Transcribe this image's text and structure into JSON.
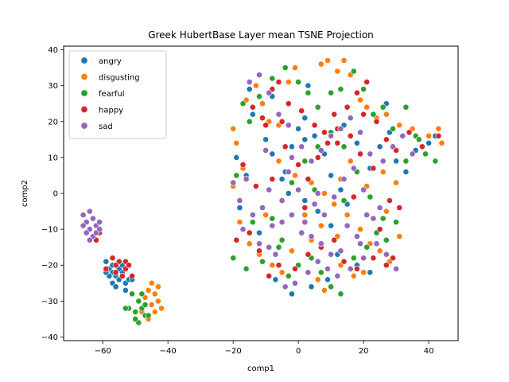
{
  "chart_data": {
    "type": "scatter",
    "title": "Greek HubertBase Layer mean TSNE Projection",
    "xlabel": "comp1",
    "ylabel": "comp2",
    "xlim": [
      -72,
      49
    ],
    "ylim": [
      -41,
      41
    ],
    "xticks": [
      -60,
      -40,
      -20,
      0,
      20,
      40
    ],
    "yticks": [
      -40,
      -30,
      -20,
      -10,
      0,
      10,
      20,
      30,
      40
    ],
    "grid": false,
    "legend_position": "top-left",
    "series": [
      {
        "name": "angry",
        "color": "#1f77b4",
        "points": [
          [
            -59,
            -19
          ],
          [
            -58,
            -21
          ],
          [
            -57,
            -22
          ],
          [
            -56,
            -23
          ],
          [
            -55,
            -24
          ],
          [
            -57,
            -25
          ],
          [
            -54,
            -22
          ],
          [
            -53,
            -25
          ],
          [
            -56,
            -26
          ],
          [
            -52,
            -24
          ],
          [
            -58,
            -23
          ],
          [
            -55,
            -21
          ],
          [
            -53,
            -27
          ],
          [
            -59,
            -22
          ],
          [
            -54,
            -20
          ],
          [
            -51,
            -24
          ],
          [
            -57,
            -20
          ],
          [
            -15,
            29
          ],
          [
            -14,
            22
          ],
          [
            -10,
            15
          ],
          [
            -8,
            11
          ],
          [
            -4,
            6
          ],
          [
            -2,
            13
          ],
          [
            0,
            18
          ],
          [
            2,
            15
          ],
          [
            5,
            16
          ],
          [
            8,
            11
          ],
          [
            10,
            5
          ],
          [
            13,
            1
          ],
          [
            15,
            -3
          ],
          [
            18,
            14
          ],
          [
            22,
            7
          ],
          [
            25,
            13
          ],
          [
            28,
            17
          ],
          [
            33,
            6
          ],
          [
            36,
            12
          ],
          [
            40,
            14
          ],
          [
            42,
            16
          ],
          [
            -3,
            0
          ],
          [
            2,
            -2
          ],
          [
            6,
            -5
          ],
          [
            10,
            -9
          ],
          [
            -5,
            4
          ],
          [
            12,
            -17
          ],
          [
            18,
            -20
          ],
          [
            22,
            -22
          ],
          [
            -7,
            -24
          ],
          [
            -2,
            -28
          ],
          [
            4,
            -26
          ],
          [
            9,
            -24
          ],
          [
            -18,
            -4
          ],
          [
            -12,
            -11
          ],
          [
            -19,
            10
          ],
          [
            -16,
            5
          ],
          [
            2,
            21
          ],
          [
            14,
            19
          ],
          [
            27,
            25
          ],
          [
            30,
            9
          ],
          [
            -8,
            27
          ],
          [
            3,
            30
          ]
        ]
      },
      {
        "name": "disgusting",
        "color": "#ff7f0e",
        "points": [
          [
            -46,
            -27
          ],
          [
            -44,
            -28
          ],
          [
            -43,
            -30
          ],
          [
            -45,
            -31
          ],
          [
            -42,
            -32
          ],
          [
            -47,
            -29
          ],
          [
            -44,
            -33
          ],
          [
            -48,
            -33
          ],
          [
            -43,
            -26
          ],
          [
            -46,
            -35
          ],
          [
            -45,
            -25
          ],
          [
            -20,
            18
          ],
          [
            -19,
            14
          ],
          [
            -16,
            26
          ],
          [
            -13,
            30
          ],
          [
            -11,
            25
          ],
          [
            -9,
            20
          ],
          [
            -6,
            19
          ],
          [
            -3,
            31
          ],
          [
            -1,
            35
          ],
          [
            7,
            36
          ],
          [
            9,
            37
          ],
          [
            12,
            34
          ],
          [
            14,
            37
          ],
          [
            16,
            33
          ],
          [
            19,
            26
          ],
          [
            21,
            24
          ],
          [
            24,
            21
          ],
          [
            27,
            22
          ],
          [
            31,
            19
          ],
          [
            35,
            18
          ],
          [
            40,
            16
          ],
          [
            43,
            18
          ],
          [
            44,
            14
          ],
          [
            -18,
            -8
          ],
          [
            -15,
            -14
          ],
          [
            -12,
            -17
          ],
          [
            -8,
            -20
          ],
          [
            -5,
            -22
          ],
          [
            -2,
            -16
          ],
          [
            1,
            -11
          ],
          [
            4,
            -13
          ],
          [
            7,
            -9
          ],
          [
            11,
            -3
          ],
          [
            15,
            -6
          ],
          [
            19,
            -10
          ],
          [
            22,
            -14
          ],
          [
            25,
            -16
          ],
          [
            28,
            -19
          ],
          [
            31,
            -12
          ],
          [
            20,
            -22
          ],
          [
            17,
            -23
          ],
          [
            13,
            -20
          ],
          [
            8,
            -27
          ],
          [
            6,
            -24
          ],
          [
            -20,
            2
          ],
          [
            -17,
            7
          ],
          [
            -6,
            9
          ],
          [
            -1,
            5
          ],
          [
            4,
            3
          ],
          [
            8,
            0
          ],
          [
            13,
            4
          ],
          [
            16,
            9
          ],
          [
            21,
            2
          ],
          [
            26,
            6
          ],
          [
            30,
            3
          ],
          [
            12,
            -12
          ],
          [
            -10,
            -6
          ],
          [
            2,
            -6
          ],
          [
            27,
            -5
          ]
        ]
      },
      {
        "name": "fearful",
        "color": "#2ca02c",
        "points": [
          [
            -51,
            -28
          ],
          [
            -49,
            -30
          ],
          [
            -48,
            -32
          ],
          [
            -50,
            -33
          ],
          [
            -47,
            -34
          ],
          [
            -49,
            -36
          ],
          [
            -46,
            -34
          ],
          [
            -52,
            -32
          ],
          [
            -48,
            -28
          ],
          [
            -50,
            -35
          ],
          [
            -47,
            -31
          ],
          [
            -53,
            -32
          ],
          [
            -17,
            25
          ],
          [
            -15,
            20
          ],
          [
            -12,
            27
          ],
          [
            -8,
            32
          ],
          [
            -4,
            35
          ],
          [
            0,
            31
          ],
          [
            3,
            28
          ],
          [
            6,
            24
          ],
          [
            10,
            28
          ],
          [
            13,
            29
          ],
          [
            17,
            34
          ],
          [
            20,
            29
          ],
          [
            23,
            22
          ],
          [
            26,
            24
          ],
          [
            29,
            18
          ],
          [
            33,
            24
          ],
          [
            36,
            16
          ],
          [
            39,
            11
          ],
          [
            42,
            9
          ],
          [
            -20,
            -18
          ],
          [
            -16,
            -21
          ],
          [
            -11,
            -19
          ],
          [
            -6,
            -15
          ],
          [
            -3,
            -23
          ],
          [
            0,
            -20
          ],
          [
            4,
            -18
          ],
          [
            7,
            -22
          ],
          [
            10,
            -26
          ],
          [
            13,
            -28
          ],
          [
            17,
            -18
          ],
          [
            21,
            -15
          ],
          [
            24,
            -11
          ],
          [
            27,
            -13
          ],
          [
            30,
            -8
          ],
          [
            -5,
            -13
          ],
          [
            -8,
            -7
          ],
          [
            -2,
            3
          ],
          [
            2,
            9
          ],
          [
            6,
            13
          ],
          [
            10,
            17
          ],
          [
            14,
            13
          ],
          [
            18,
            6
          ],
          [
            22,
            -1
          ],
          [
            26,
            -7
          ],
          [
            33,
            9
          ],
          [
            37,
            15
          ],
          [
            5,
            1
          ],
          [
            -14,
            -8
          ],
          [
            -19,
            5
          ],
          [
            14,
            -2
          ]
        ]
      },
      {
        "name": "happy",
        "color": "#d62728",
        "points": [
          [
            -61,
            -11
          ],
          [
            -62,
            -13
          ],
          [
            -57,
            -18
          ],
          [
            -55,
            -19
          ],
          [
            -53,
            -21
          ],
          [
            -56,
            -20
          ],
          [
            -54,
            -23
          ],
          [
            -59,
            -21
          ],
          [
            -53,
            -19
          ],
          [
            -51,
            -23
          ],
          [
            -52,
            -20
          ],
          [
            -56,
            -22
          ],
          [
            -14,
            24
          ],
          [
            -11,
            21
          ],
          [
            -8,
            29
          ],
          [
            -6,
            31
          ],
          [
            -3,
            25
          ],
          [
            1,
            23
          ],
          [
            5,
            19
          ],
          [
            8,
            17
          ],
          [
            11,
            22
          ],
          [
            15,
            24
          ],
          [
            18,
            28
          ],
          [
            21,
            31
          ],
          [
            24,
            20
          ],
          [
            27,
            15
          ],
          [
            30,
            12
          ],
          [
            34,
            17
          ],
          [
            38,
            13
          ],
          [
            43,
            16
          ],
          [
            -10,
            19
          ],
          [
            -4,
            13
          ],
          [
            0,
            8
          ],
          [
            3,
            4
          ],
          [
            6,
            10
          ],
          [
            9,
            14
          ],
          [
            12,
            18
          ],
          [
            16,
            16
          ],
          [
            19,
            11
          ],
          [
            23,
            7
          ],
          [
            28,
            -2
          ],
          [
            31,
            -4
          ],
          [
            -19,
            -13
          ],
          [
            -15,
            -11
          ],
          [
            -12,
            -16
          ],
          [
            -9,
            -23
          ],
          [
            -6,
            -20
          ],
          [
            -1,
            -21
          ],
          [
            3,
            -17
          ],
          [
            7,
            -15
          ],
          [
            11,
            -13
          ],
          [
            14,
            -19
          ],
          [
            18,
            -21
          ],
          [
            23,
            -18
          ],
          [
            27,
            -20
          ],
          [
            29,
            -18
          ],
          [
            -17,
            8
          ],
          [
            -13,
            2
          ],
          [
            -8,
            4
          ],
          [
            2,
            -4
          ],
          [
            17,
            -1
          ],
          [
            25,
            -10
          ],
          [
            -5,
            20
          ],
          [
            20,
            22
          ],
          [
            12,
            14
          ]
        ]
      },
      {
        "name": "sad",
        "color": "#9467bd",
        "points": [
          [
            -66,
            -6
          ],
          [
            -65,
            -8
          ],
          [
            -64,
            -10
          ],
          [
            -63,
            -7
          ],
          [
            -62,
            -9
          ],
          [
            -65,
            -11
          ],
          [
            -63,
            -12
          ],
          [
            -61,
            -8
          ],
          [
            -64,
            -5
          ],
          [
            -66,
            -9
          ],
          [
            -62,
            -11
          ],
          [
            -64,
            -13
          ],
          [
            -61,
            -10
          ],
          [
            -15,
            31
          ],
          [
            -12,
            33
          ],
          [
            -9,
            28
          ],
          [
            -6,
            22
          ],
          [
            -3,
            19
          ],
          [
            -2,
            10
          ],
          [
            1,
            13
          ],
          [
            4,
            9
          ],
          [
            7,
            12
          ],
          [
            10,
            16
          ],
          [
            13,
            18
          ],
          [
            16,
            21
          ],
          [
            19,
            17
          ],
          [
            22,
            11
          ],
          [
            26,
            9
          ],
          [
            29,
            13
          ],
          [
            32,
            16
          ],
          [
            35,
            11
          ],
          [
            -20,
            3
          ],
          [
            -18,
            -2
          ],
          [
            -14,
            -6
          ],
          [
            -11,
            -4
          ],
          [
            -8,
            -9
          ],
          [
            -5,
            -8
          ],
          [
            -2,
            -6
          ],
          [
            1,
            -11
          ],
          [
            4,
            -12
          ],
          [
            7,
            -14
          ],
          [
            10,
            -17
          ],
          [
            13,
            -16
          ],
          [
            16,
            -21
          ],
          [
            20,
            -18
          ],
          [
            24,
            -14
          ],
          [
            27,
            -17
          ],
          [
            30,
            -21
          ],
          [
            -17,
            -10
          ],
          [
            -12,
            -14
          ],
          [
            -9,
            -15
          ],
          [
            -7,
            -17
          ],
          [
            -4,
            -26
          ],
          [
            -1,
            -25
          ],
          [
            3,
            -22
          ],
          [
            6,
            -19
          ],
          [
            9,
            -21
          ],
          [
            12,
            -23
          ],
          [
            15,
            -9
          ],
          [
            18,
            -12
          ],
          [
            21,
            -6
          ],
          [
            25,
            -4
          ],
          [
            -16,
            4
          ],
          [
            -9,
            1
          ],
          [
            -3,
            6
          ],
          [
            0,
            1
          ],
          [
            2,
            -8
          ],
          [
            5,
            -3
          ],
          [
            8,
            -6
          ],
          [
            11,
            -1
          ],
          [
            14,
            4
          ],
          [
            17,
            7
          ],
          [
            20,
            1
          ],
          [
            23,
            -7
          ],
          [
            -5,
            -2
          ],
          [
            6,
            0
          ],
          [
            19,
            -14
          ],
          [
            -10,
            12
          ]
        ]
      }
    ]
  }
}
